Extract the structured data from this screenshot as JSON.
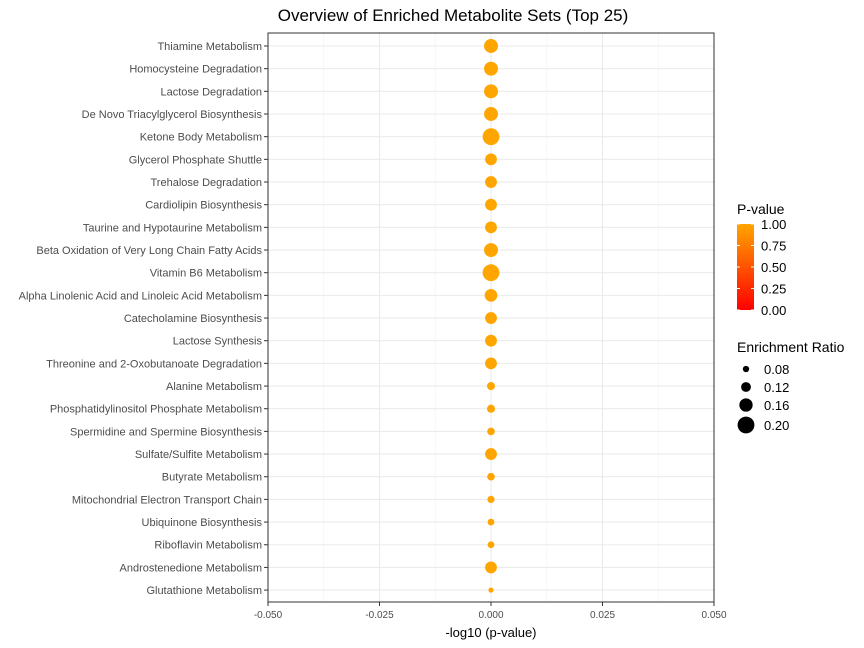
{
  "chart_data": {
    "type": "scatter",
    "title": "Overview of Enriched Metabolite Sets (Top 25)",
    "xlabel": "-log10 (p-value)",
    "ylabel": "",
    "xlim": [
      -0.05,
      0.05
    ],
    "x_ticks": [
      "-0.050",
      "-0.025",
      "0.000",
      "0.025",
      "0.050"
    ],
    "grid": true,
    "legend_placement": "right",
    "colors": {
      "low": "#ff0000",
      "high": "#ffa500",
      "panel_border": "#333333",
      "grid": "#ebebeb"
    },
    "color_legend": {
      "title": "P-value",
      "labels": [
        "1.00",
        "0.75",
        "0.50",
        "0.25",
        "0.00"
      ]
    },
    "size_legend": {
      "title": "Enrichment Ratio",
      "labels": [
        "0.08",
        "0.12",
        "0.16",
        "0.20"
      ],
      "values": [
        0.08,
        0.12,
        0.16,
        0.2
      ]
    },
    "points": [
      {
        "name": "Thiamine Metabolism",
        "x": 0,
        "p_value": 1.0,
        "ratio": 0.167
      },
      {
        "name": "Homocysteine Degradation",
        "x": 0,
        "p_value": 1.0,
        "ratio": 0.167
      },
      {
        "name": "Lactose Degradation",
        "x": 0,
        "p_value": 1.0,
        "ratio": 0.167
      },
      {
        "name": "De Novo Triacylglycerol Biosynthesis",
        "x": 0,
        "p_value": 1.0,
        "ratio": 0.167
      },
      {
        "name": "Ketone Body Metabolism",
        "x": 0,
        "p_value": 1.0,
        "ratio": 0.2
      },
      {
        "name": "Glycerol Phosphate Shuttle",
        "x": 0,
        "p_value": 1.0,
        "ratio": 0.143
      },
      {
        "name": "Trehalose Degradation",
        "x": 0,
        "p_value": 1.0,
        "ratio": 0.143
      },
      {
        "name": "Cardiolipin Biosynthesis",
        "x": 0,
        "p_value": 1.0,
        "ratio": 0.143
      },
      {
        "name": "Taurine and Hypotaurine Metabolism",
        "x": 0,
        "p_value": 1.0,
        "ratio": 0.143
      },
      {
        "name": "Beta Oxidation of Very Long Chain Fatty Acids",
        "x": 0,
        "p_value": 1.0,
        "ratio": 0.167
      },
      {
        "name": "Vitamin B6 Metabolism",
        "x": 0,
        "p_value": 1.0,
        "ratio": 0.2
      },
      {
        "name": "Alpha Linolenic Acid and Linoleic Acid Metabolism",
        "x": 0,
        "p_value": 1.0,
        "ratio": 0.152
      },
      {
        "name": "Catecholamine Biosynthesis",
        "x": 0,
        "p_value": 1.0,
        "ratio": 0.143
      },
      {
        "name": "Lactose Synthesis",
        "x": 0,
        "p_value": 1.0,
        "ratio": 0.143
      },
      {
        "name": "Threonine and 2-Oxobutanoate Degradation",
        "x": 0,
        "p_value": 1.0,
        "ratio": 0.143
      },
      {
        "name": "Alanine Metabolism",
        "x": 0,
        "p_value": 1.0,
        "ratio": 0.1
      },
      {
        "name": "Phosphatidylinositol Phosphate Metabolism",
        "x": 0,
        "p_value": 1.0,
        "ratio": 0.1
      },
      {
        "name": "Spermidine and Spermine Biosynthesis",
        "x": 0,
        "p_value": 1.0,
        "ratio": 0.095
      },
      {
        "name": "Sulfate/Sulfite Metabolism",
        "x": 0,
        "p_value": 1.0,
        "ratio": 0.143
      },
      {
        "name": "Butyrate Metabolism",
        "x": 0,
        "p_value": 1.0,
        "ratio": 0.095
      },
      {
        "name": "Mitochondrial Electron Transport Chain",
        "x": 0,
        "p_value": 1.0,
        "ratio": 0.09
      },
      {
        "name": "Ubiquinone Biosynthesis",
        "x": 0,
        "p_value": 1.0,
        "ratio": 0.085
      },
      {
        "name": "Riboflavin Metabolism",
        "x": 0,
        "p_value": 1.0,
        "ratio": 0.085
      },
      {
        "name": "Androstenedione Metabolism",
        "x": 0,
        "p_value": 1.0,
        "ratio": 0.143
      },
      {
        "name": "Glutathione Metabolism",
        "x": 0,
        "p_value": 1.0,
        "ratio": 0.067
      }
    ]
  }
}
